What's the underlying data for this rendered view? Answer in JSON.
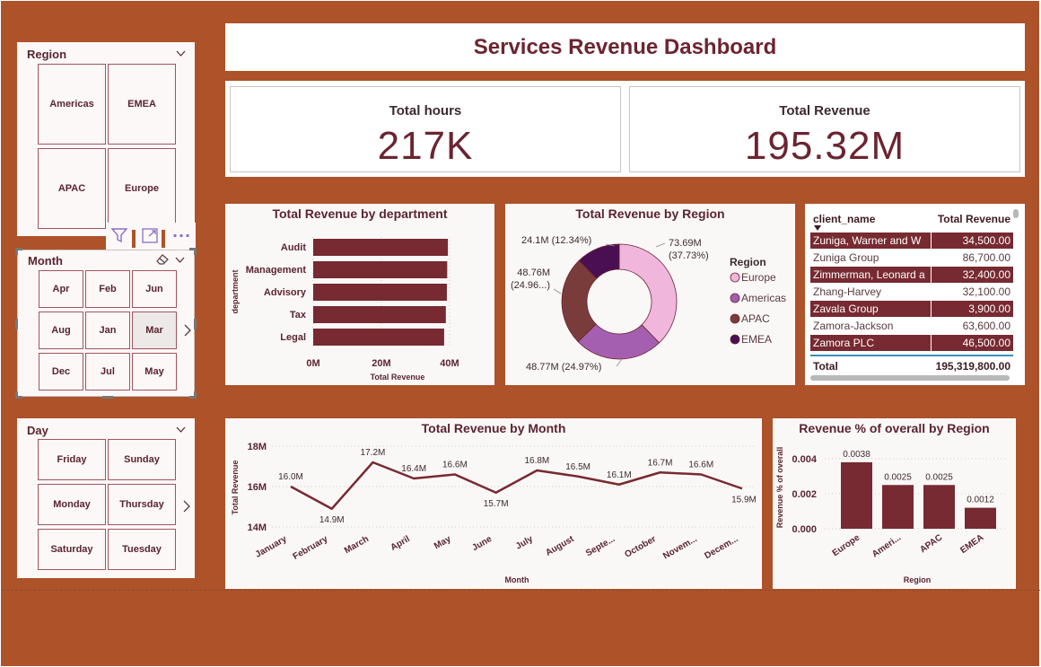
{
  "dashboard": {
    "title": "Services Revenue Dashboard"
  },
  "kpis": {
    "hours": {
      "label": "Total hours",
      "value": "217K"
    },
    "revenue": {
      "label": "Total Revenue",
      "value": "195.32M"
    }
  },
  "slicers": {
    "region": {
      "label": "Region",
      "items": [
        "Americas",
        "EMEA",
        "APAC",
        "Europe"
      ]
    },
    "month": {
      "label": "Month",
      "items": [
        "Apr",
        "Feb",
        "Jun",
        "Aug",
        "Jan",
        "Mar",
        "Dec",
        "Jul",
        "May"
      ],
      "selected": "Mar"
    },
    "day": {
      "label": "Day",
      "items": [
        "Friday",
        "Sunday",
        "Monday",
        "Thursday",
        "Saturday",
        "Tuesday"
      ]
    }
  },
  "table": {
    "headers": [
      "client_name",
      "Total Revenue"
    ],
    "rows": [
      [
        "Zuniga, Warner and W",
        "34,500.00"
      ],
      [
        "Zuniga Group",
        "86,700.00"
      ],
      [
        "Zimmerman, Leonard a",
        "32,400.00"
      ],
      [
        "Zhang-Harvey",
        "32,100.00"
      ],
      [
        "Zavala Group",
        "3,900.00"
      ],
      [
        "Zamora-Jackson",
        "63,600.00"
      ],
      [
        "Zamora PLC",
        "46,500.00"
      ]
    ],
    "total_label": "Total",
    "total_value": "195,319,800.00"
  },
  "colors": {
    "background": "#ad5229",
    "bar": "#772a31",
    "text": "#6b2530"
  },
  "chart_data": [
    {
      "type": "bar",
      "orientation": "horizontal",
      "title": "Total Revenue by department",
      "xlabel": "Total Revenue",
      "ylabel": "department",
      "categories": [
        "Audit",
        "Management",
        "Advisory",
        "Tax",
        "Legal"
      ],
      "values": [
        39.5,
        39.3,
        39.2,
        38.9,
        38.4
      ],
      "xlim": [
        0,
        40
      ],
      "ticks": [
        "0M",
        "20M",
        "40M"
      ],
      "tick_values": [
        0,
        20,
        40
      ],
      "grid": true
    },
    {
      "type": "pie",
      "donut": true,
      "title": "Total Revenue by Region",
      "legend_title": "Region",
      "legend_position": "right",
      "slices": [
        {
          "name": "Europe",
          "value": 73.69,
          "label": "73.69M",
          "pct_label": "(37.73%)",
          "color": "#f0b6dc"
        },
        {
          "name": "Americas",
          "value": 48.77,
          "label": "48.77M (24.97%)",
          "color": "#a55fb0"
        },
        {
          "name": "APAC",
          "value": 48.76,
          "label": "48.76M",
          "pct_label": "(24.96...)",
          "color": "#7a3c3a"
        },
        {
          "name": "EMEA",
          "value": 24.1,
          "label": "24.1M (12.34%)",
          "color": "#4a0f52"
        }
      ]
    },
    {
      "type": "line",
      "title": "Total Revenue by Month",
      "xlabel": "Month",
      "ylabel": "Total Revenue",
      "x": [
        "January",
        "February",
        "March",
        "April",
        "May",
        "June",
        "July",
        "August",
        "Septe...",
        "October",
        "Novem...",
        "Decem..."
      ],
      "values": [
        16.0,
        14.9,
        17.2,
        16.4,
        16.6,
        15.7,
        16.8,
        16.5,
        16.1,
        16.7,
        16.6,
        15.9
      ],
      "labels": [
        "16.0M",
        "14.9M",
        "17.2M",
        "16.4M",
        "16.6M",
        "15.7M",
        "16.8M",
        "16.5M",
        "16.1M",
        "16.7M",
        "16.6M",
        "15.9M"
      ],
      "ylim": [
        14,
        18
      ],
      "ticks": [
        "14M",
        "16M",
        "18M"
      ],
      "tick_values": [
        14,
        16,
        18
      ],
      "grid": true
    },
    {
      "type": "bar",
      "title": "Revenue % of overall by Region",
      "xlabel": "Region",
      "ylabel": "Revenue % of overall",
      "categories": [
        "Europe",
        "Ameri...",
        "APAC",
        "EMEA"
      ],
      "values": [
        0.0038,
        0.0025,
        0.0025,
        0.0012
      ],
      "labels": [
        "0.0038",
        "0.0025",
        "0.0025",
        "0.0012"
      ],
      "ylim": [
        0,
        0.004
      ],
      "ticks": [
        "0.000",
        "0.002",
        "0.004"
      ],
      "tick_values": [
        0,
        0.002,
        0.004
      ],
      "grid": true
    }
  ]
}
